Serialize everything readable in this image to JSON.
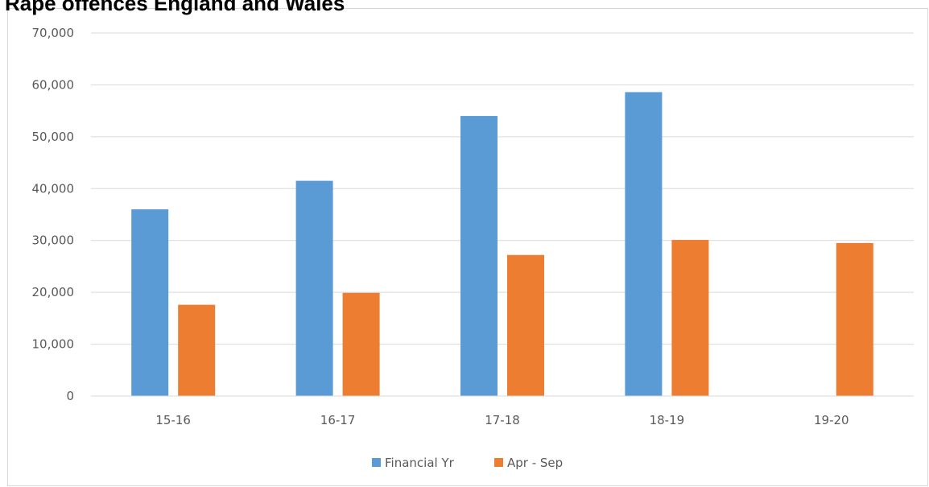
{
  "chart_data": {
    "type": "bar",
    "title": "Rape offences England and Wales",
    "categories": [
      "15-16",
      "16-17",
      "17-18",
      "18-19",
      "19-20"
    ],
    "series": [
      {
        "name": "Financial Yr",
        "color": "#5b9bd5",
        "values": [
          36000,
          41500,
          54000,
          58600,
          null
        ]
      },
      {
        "name": "Apr - Sep",
        "color": "#ed7d31",
        "values": [
          17600,
          19900,
          27200,
          30100,
          29500
        ]
      }
    ],
    "y_ticks": [
      "0",
      "10,000",
      "20,000",
      "30,000",
      "40,000",
      "50,000",
      "60,000",
      "70,000"
    ],
    "ylim": [
      0,
      70000
    ],
    "ytick_step": 10000,
    "grid": true,
    "legend_position": "bottom-center"
  }
}
